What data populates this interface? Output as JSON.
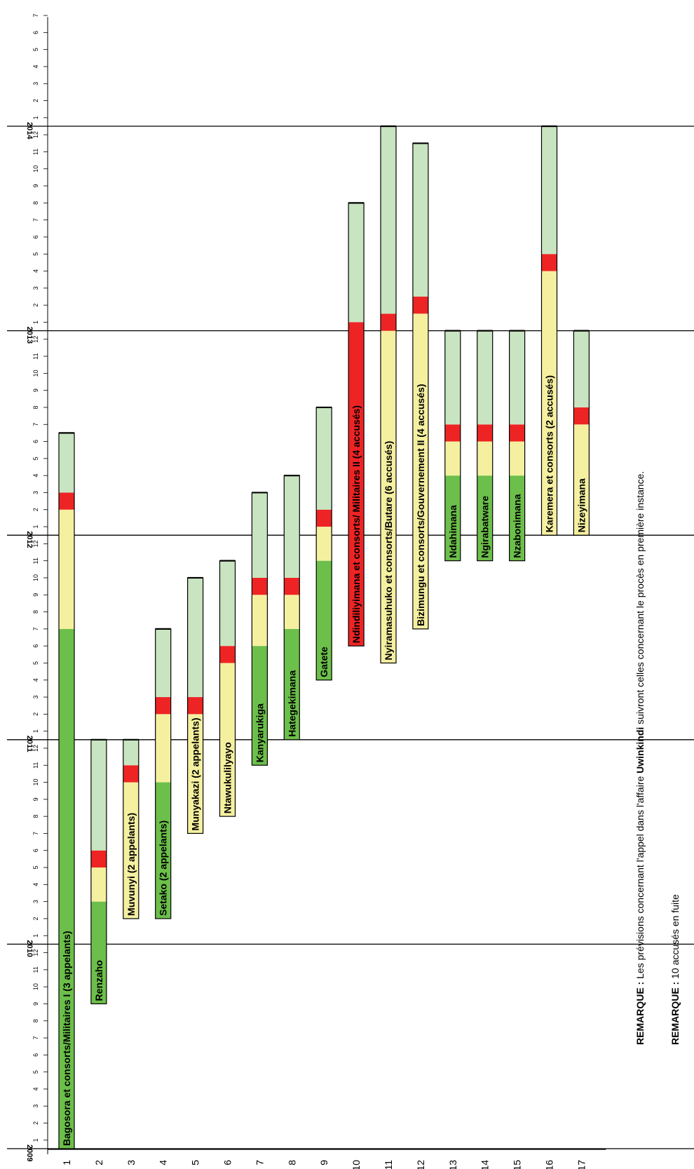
{
  "chart_data": {
    "type": "bar",
    "orientation": "rotated-gantt",
    "categories": [
      "1",
      "2",
      "3",
      "4",
      "5",
      "6",
      "7",
      "8",
      "9",
      "10",
      "11",
      "12",
      "13",
      "14",
      "15",
      "16",
      "17"
    ],
    "time_axis": {
      "years": [
        "2009",
        "2010",
        "2011",
        "2012",
        "2013",
        "2014"
      ],
      "month_ticks": [
        "1",
        "2",
        "3",
        "4",
        "5",
        "6",
        "7",
        "8",
        "9",
        "10",
        "11",
        "12"
      ],
      "range_months": [
        0,
        66
      ]
    },
    "phase_colors": {
      "phase1": "#6cbf4a",
      "phase2": "#f5f0a0",
      "phase3": "#ee2424",
      "phase4": "#c8e4c0"
    },
    "bars": [
      {
        "cat": "1",
        "label": "Bagosora et consorts/Militaires I (3 appelants)",
        "start": 0,
        "p1": 30.5,
        "p2": 37.5,
        "p3": 38.5,
        "end": 42,
        "label_month": 0
      },
      {
        "cat": "2",
        "label": "Renzaho",
        "start": 8.5,
        "p1": 14.5,
        "p2": 16.5,
        "p3": 17.5,
        "end": 24,
        "label_month": 8.5
      },
      {
        "cat": "3",
        "label": "Muvunyi (2 appelants)",
        "start": 13.5,
        "p1": 13.5,
        "p2": 21.5,
        "p3": 22.5,
        "end": 24,
        "label_month": 13.5
      },
      {
        "cat": "4",
        "label": "Setako (2 appelants)",
        "start": 13.5,
        "p1": 21.5,
        "p2": 25.5,
        "p3": 26.5,
        "end": 30.5,
        "label_month": 13.5
      },
      {
        "cat": "5",
        "label": "Munyakazi (2 appelants)",
        "start": 18.5,
        "p1": 18.5,
        "p2": 25.5,
        "p3": 26.5,
        "end": 33.5,
        "label_month": 18.5
      },
      {
        "cat": "6",
        "label": "Ntawukulilyayo",
        "start": 19.5,
        "p1": 19.5,
        "p2": 28.5,
        "p3": 29.5,
        "end": 34.5,
        "label_month": 19.5
      },
      {
        "cat": "7",
        "label": "Kanyarukiga",
        "start": 22.5,
        "p1": 29.5,
        "p2": 32.5,
        "p3": 33.5,
        "end": 38.5,
        "label_month": 22.5
      },
      {
        "cat": "8",
        "label": "Hategekimana",
        "start": 24,
        "p1": 30.5,
        "p2": 32.5,
        "p3": 33.5,
        "end": 39.5,
        "label_month": 24
      },
      {
        "cat": "9",
        "label": "Gatete",
        "start": 27.5,
        "p1": 34.5,
        "p2": 36.5,
        "p3": 37.5,
        "end": 43.5,
        "label_month": 27.5
      },
      {
        "cat": "10",
        "label": "Ndindiliyimana et consorts/ Militaires II (4 accusés)",
        "start": 29.5,
        "p1": 29.5,
        "p2": 29.5,
        "p3": 48.5,
        "end": 55.5,
        "label_month": 29.5
      },
      {
        "cat": "11",
        "label": "Nyiramasuhuko et consorts/Butare (6 accusés)",
        "start": 28.5,
        "p1": 28.5,
        "p2": 48,
        "p3": 49,
        "end": 60,
        "label_month": 28.5
      },
      {
        "cat": "12",
        "label": "Bizimungu et consorts/Gouvernement II (4 accusés)",
        "start": 30.5,
        "p1": 30.5,
        "p2": 49,
        "p3": 50,
        "end": 59,
        "label_month": 30.5
      },
      {
        "cat": "13",
        "label": "Ndahimana",
        "start": 34.5,
        "p1": 39.5,
        "p2": 41.5,
        "p3": 42.5,
        "end": 48,
        "label_month": 34.5
      },
      {
        "cat": "14",
        "label": "Ngirabatware",
        "start": 34.5,
        "p1": 39.5,
        "p2": 41.5,
        "p3": 42.5,
        "end": 48,
        "label_month": 34.5
      },
      {
        "cat": "15",
        "label": "Nzabonimana",
        "start": 34.5,
        "p1": 39.5,
        "p2": 41.5,
        "p3": 42.5,
        "end": 48,
        "label_month": 34.5
      },
      {
        "cat": "16",
        "label": "Karemera et consorts (2 accusés)",
        "start": 36,
        "p1": 36,
        "p2": 51.5,
        "p3": 52.5,
        "end": 60,
        "label_month": 36
      },
      {
        "cat": "17",
        "label": "Nizeyimana",
        "start": 36,
        "p1": 36,
        "p2": 42.5,
        "p3": 43.5,
        "end": 48,
        "label_month": 36
      }
    ]
  },
  "notes": {
    "note1_prefix": "REMARQUE : ",
    "note1_text_a": "Les prévisions concernant l'appel dans l'affaire ",
    "note1_bold": "Uwinkindi",
    "note1_text_b": " suivront celles concernant le procès en première instance.",
    "note2_prefix": "REMARQUE : ",
    "note2_text": "10 accusés en fuite"
  }
}
